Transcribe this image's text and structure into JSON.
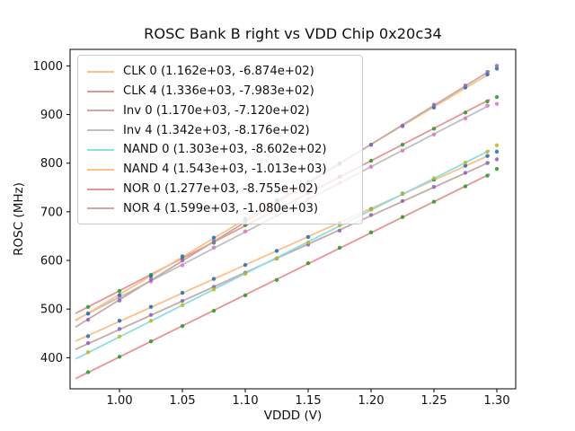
{
  "figure": {
    "title": "ROSC Bank B right vs VDD Chip 0x20c34"
  },
  "chart_data": {
    "type": "scatter",
    "title": "ROSC Bank B right vs VDD Chip 0x20c34",
    "xlabel": "VDDD (V)",
    "ylabel": "ROSC (MHz)",
    "xlim": [
      0.9607,
      1.315
    ],
    "ylim": [
      336,
      1034
    ],
    "grid": false,
    "legend_position": "upper left",
    "xticks": [
      1.0,
      1.05,
      1.1,
      1.15,
      1.2,
      1.25,
      1.3
    ],
    "xtick_labels": [
      "1.00",
      "1.05",
      "1.10",
      "1.15",
      "1.20",
      "1.25",
      "1.30"
    ],
    "yticks": [
      400,
      500,
      600,
      700,
      800,
      900,
      1000
    ],
    "ytick_labels": [
      "400",
      "500",
      "600",
      "700",
      "800",
      "900",
      "1000"
    ],
    "x_points": [
      0.975,
      1.0,
      1.025,
      1.05,
      1.075,
      1.1,
      1.125,
      1.15,
      1.175,
      1.2,
      1.225,
      1.25,
      1.275,
      1.2925
    ],
    "extra_x": 1.3,
    "line_span": [
      0.965,
      1.2945
    ],
    "series": [
      {
        "name": "CLK 0",
        "label": "CLK 0 (1.162e+03, -6.874e+02)",
        "slope": 1162,
        "intercept": -687.4,
        "marker_color": "#1f77b4",
        "line_color": "#ffbf86",
        "extra_dev": 0.5
      },
      {
        "name": "CLK 4",
        "label": "CLK 4 (1.336e+03, -7.983e+02)",
        "slope": 1336,
        "intercept": -798.3,
        "marker_color": "#2ca02c",
        "line_color": "#ea9393",
        "extra_dev": -2.5
      },
      {
        "name": "Inv 0",
        "label": "Inv 0 (1.170e+03, -7.120e+02)",
        "slope": 1170,
        "intercept": -712.0,
        "marker_color": "#9467bd",
        "line_color": "#c5aaa5",
        "extra_dev": -1.0
      },
      {
        "name": "Inv 4",
        "label": "Inv 4 (1.342e+03, -8.176e+02)",
        "slope": 1342,
        "intercept": -817.6,
        "marker_color": "#e377c2",
        "line_color": "#bfbfbf",
        "extra_dev": -5.0
      },
      {
        "name": "NAND 0",
        "label": "NAND 0 (1.303e+03, -8.602e+02)",
        "slope": 1303,
        "intercept": -860.2,
        "marker_color": "#bcbd22",
        "line_color": "#8bdee7",
        "extra_dev": 3.0
      },
      {
        "name": "NAND 4",
        "label": "NAND 4 (1.543e+03, -1.013e+03)",
        "slope": 1543,
        "intercept": -1013.0,
        "marker_color": "#1f77b4",
        "line_color": "#ffbf86",
        "extra_dev": 1.5
      },
      {
        "name": "NOR 0",
        "label": "NOR 0 (1.277e+03, -8.755e+02)",
        "slope": 1277,
        "intercept": -875.5,
        "marker_color": "#2ca02c",
        "line_color": "#ea9393",
        "extra_dev": 3.5
      },
      {
        "name": "NOR 4",
        "label": "NOR 4 (1.599e+03, -1.080e+03)",
        "slope": 1599,
        "intercept": -1080.0,
        "marker_color": "#9467bd",
        "line_color": "#c5aaa5",
        "extra_dev": 1.5
      }
    ]
  }
}
